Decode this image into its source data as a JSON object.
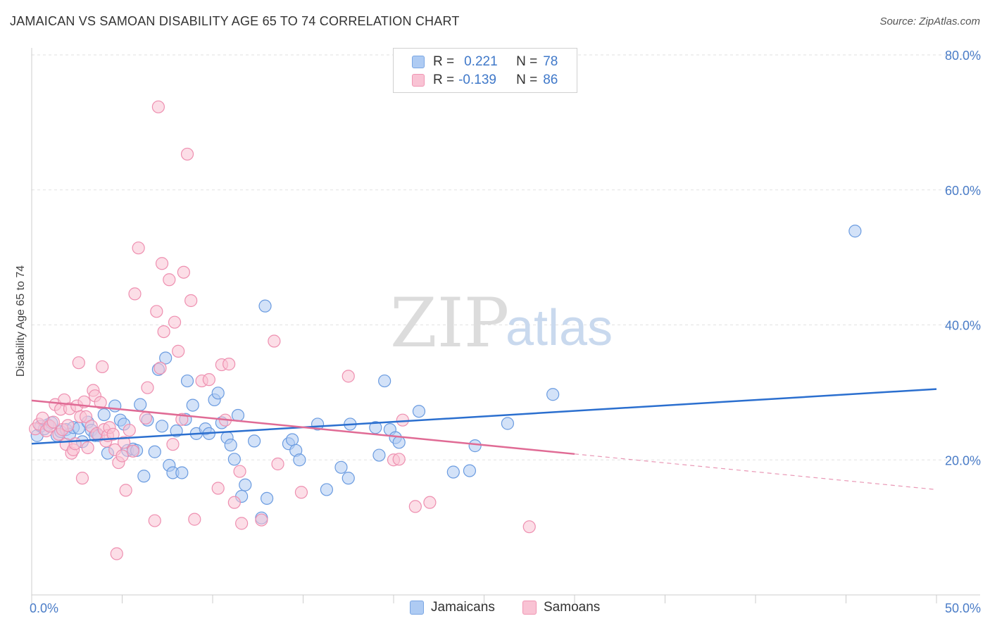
{
  "title": "JAMAICAN VS SAMOAN DISABILITY AGE 65 TO 74 CORRELATION CHART",
  "source": "Source: ZipAtlas.com",
  "watermark": {
    "zip": "ZIP",
    "atlas": "atlas"
  },
  "legend_stats": {
    "r_label": "R =",
    "n_label": "N =",
    "series": [
      {
        "r": "0.221",
        "n": "78"
      },
      {
        "r": "-0.139",
        "n": "86"
      }
    ]
  },
  "bottom_legend": [
    "Jamaicans",
    "Samoans"
  ],
  "chart_data": {
    "type": "scatter",
    "title": "JAMAICAN VS SAMOAN DISABILITY AGE 65 TO 74 CORRELATION CHART",
    "xlabel": "",
    "ylabel": "Disability Age 65 to 74",
    "xlim": [
      0,
      50
    ],
    "ylim": [
      0,
      80
    ],
    "x_tick_labels": [
      {
        "value": 0,
        "label": "0.0%"
      },
      {
        "value": 50,
        "label": "50.0%"
      }
    ],
    "y_tick_labels": [
      {
        "value": 20,
        "label": "20.0%"
      },
      {
        "value": 40,
        "label": "40.0%"
      },
      {
        "value": 60,
        "label": "60.0%"
      },
      {
        "value": 80,
        "label": "80.0%"
      }
    ],
    "grid": "horizontal dashed",
    "legend_position": "top-center and bottom-center",
    "colors": {
      "jamaicans_fill": "#aecbf3",
      "jamaicans_stroke": "#6a9be0",
      "jamaicans_line": "#2b6fcf",
      "samoans_fill": "#f9c3d4",
      "samoans_stroke": "#ee8fb0",
      "samoans_line": "#e06b95"
    },
    "series": [
      {
        "name": "Jamaicans",
        "trend": {
          "x": [
            0,
            50
          ],
          "y": [
            22.4,
            30.5
          ],
          "dashed_from": null
        },
        "points": [
          [
            0.3,
            23.6
          ],
          [
            0.5,
            25
          ],
          [
            0.7,
            24.6
          ],
          [
            0.9,
            25.2
          ],
          [
            1.1,
            25.5
          ],
          [
            1.4,
            23.6
          ],
          [
            1.6,
            24.2
          ],
          [
            1.9,
            24.5
          ],
          [
            2.1,
            23.8
          ],
          [
            2.3,
            24.8
          ],
          [
            2.6,
            24.7
          ],
          [
            2.8,
            22.7
          ],
          [
            3.1,
            25.6
          ],
          [
            3.3,
            24.4
          ],
          [
            3.5,
            23.6
          ],
          [
            3.7,
            23.6
          ],
          [
            4.0,
            26.7
          ],
          [
            4.2,
            21
          ],
          [
            4.6,
            28
          ],
          [
            4.9,
            25.9
          ],
          [
            5.1,
            25.3
          ],
          [
            5.3,
            21.4
          ],
          [
            5.6,
            21.6
          ],
          [
            5.8,
            21.4
          ],
          [
            6.0,
            28.2
          ],
          [
            6.2,
            17.6
          ],
          [
            6.4,
            25.9
          ],
          [
            6.8,
            21.2
          ],
          [
            7.0,
            33.4
          ],
          [
            7.2,
            25
          ],
          [
            7.4,
            35.1
          ],
          [
            7.6,
            19.2
          ],
          [
            7.8,
            18.1
          ],
          [
            8.0,
            24.3
          ],
          [
            8.3,
            18.1
          ],
          [
            8.5,
            26
          ],
          [
            8.6,
            31.7
          ],
          [
            8.9,
            28.1
          ],
          [
            9.1,
            23.9
          ],
          [
            9.6,
            24.6
          ],
          [
            9.8,
            23.9
          ],
          [
            10.1,
            28.9
          ],
          [
            10.3,
            29.9
          ],
          [
            10.5,
            25.5
          ],
          [
            10.8,
            23.3
          ],
          [
            11.0,
            22.2
          ],
          [
            11.2,
            20.1
          ],
          [
            11.4,
            26.6
          ],
          [
            11.6,
            14.6
          ],
          [
            11.8,
            16.3
          ],
          [
            12.3,
            22.8
          ],
          [
            12.7,
            11.4
          ],
          [
            12.9,
            42.8
          ],
          [
            13.0,
            14.3
          ],
          [
            14.2,
            22.4
          ],
          [
            14.4,
            23
          ],
          [
            14.6,
            21.4
          ],
          [
            14.8,
            20
          ],
          [
            15.8,
            25.3
          ],
          [
            16.3,
            15.6
          ],
          [
            17.1,
            18.9
          ],
          [
            17.5,
            17.3
          ],
          [
            17.6,
            25.3
          ],
          [
            19.0,
            24.8
          ],
          [
            19.2,
            20.7
          ],
          [
            19.5,
            31.7
          ],
          [
            19.8,
            24.5
          ],
          [
            20.1,
            23.3
          ],
          [
            20.3,
            22.6
          ],
          [
            21.4,
            27.2
          ],
          [
            23.3,
            18.2
          ],
          [
            24.2,
            18.4
          ],
          [
            24.5,
            22.1
          ],
          [
            26.3,
            25.4
          ],
          [
            28.8,
            29.7
          ],
          [
            45.5,
            53.9
          ]
        ]
      },
      {
        "name": "Samoans",
        "trend": {
          "x": [
            0,
            50
          ],
          "y": [
            28.8,
            15.6
          ],
          "dashed_from": 30
        },
        "points": [
          [
            0.2,
            24.6
          ],
          [
            0.4,
            25.3
          ],
          [
            0.6,
            26.2
          ],
          [
            0.8,
            24.3
          ],
          [
            1.0,
            25
          ],
          [
            1.2,
            25.6
          ],
          [
            1.3,
            28.2
          ],
          [
            1.5,
            23.8
          ],
          [
            1.6,
            27.5
          ],
          [
            1.7,
            24.5
          ],
          [
            1.8,
            28.9
          ],
          [
            1.9,
            22.3
          ],
          [
            2.0,
            25.1
          ],
          [
            2.1,
            27.6
          ],
          [
            2.2,
            21
          ],
          [
            2.3,
            21.5
          ],
          [
            2.4,
            22.4
          ],
          [
            2.5,
            28
          ],
          [
            2.6,
            34.4
          ],
          [
            2.7,
            26.4
          ],
          [
            2.8,
            17.3
          ],
          [
            2.9,
            28.6
          ],
          [
            3.0,
            26.4
          ],
          [
            3.1,
            21.8
          ],
          [
            3.3,
            25
          ],
          [
            3.4,
            30.3
          ],
          [
            3.5,
            29.5
          ],
          [
            3.6,
            23.9
          ],
          [
            3.8,
            28.5
          ],
          [
            3.9,
            33.8
          ],
          [
            4.0,
            24.5
          ],
          [
            4.1,
            22.8
          ],
          [
            4.2,
            23.6
          ],
          [
            4.3,
            24.8
          ],
          [
            4.5,
            23.8
          ],
          [
            4.6,
            21.5
          ],
          [
            4.7,
            6.1
          ],
          [
            4.8,
            19.6
          ],
          [
            5.0,
            20.6
          ],
          [
            5.1,
            22.6
          ],
          [
            5.2,
            15.5
          ],
          [
            5.4,
            24.4
          ],
          [
            5.6,
            21.3
          ],
          [
            5.7,
            44.6
          ],
          [
            5.9,
            51.4
          ],
          [
            6.3,
            26.2
          ],
          [
            6.4,
            30.7
          ],
          [
            6.8,
            11
          ],
          [
            6.9,
            42
          ],
          [
            7.0,
            72.3
          ],
          [
            7.1,
            33.6
          ],
          [
            7.2,
            49.1
          ],
          [
            7.3,
            39
          ],
          [
            7.6,
            46.7
          ],
          [
            7.8,
            22.3
          ],
          [
            7.9,
            40.4
          ],
          [
            8.1,
            36.1
          ],
          [
            8.3,
            26
          ],
          [
            8.4,
            47.8
          ],
          [
            8.6,
            65.3
          ],
          [
            8.8,
            43.6
          ],
          [
            9.0,
            11.2
          ],
          [
            9.4,
            31.7
          ],
          [
            9.8,
            31.9
          ],
          [
            10.3,
            15.8
          ],
          [
            10.5,
            34.1
          ],
          [
            10.7,
            25.9
          ],
          [
            10.9,
            34.2
          ],
          [
            11.2,
            13.7
          ],
          [
            11.5,
            18.3
          ],
          [
            11.6,
            10.6
          ],
          [
            12.7,
            11.1
          ],
          [
            13.4,
            37.6
          ],
          [
            13.6,
            19.4
          ],
          [
            14.9,
            15.2
          ],
          [
            17.5,
            32.4
          ],
          [
            20.0,
            20
          ],
          [
            20.3,
            20.1
          ],
          [
            20.5,
            25.9
          ],
          [
            21.2,
            13.1
          ],
          [
            22.0,
            13.7
          ],
          [
            27.5,
            10.1
          ]
        ]
      }
    ]
  }
}
